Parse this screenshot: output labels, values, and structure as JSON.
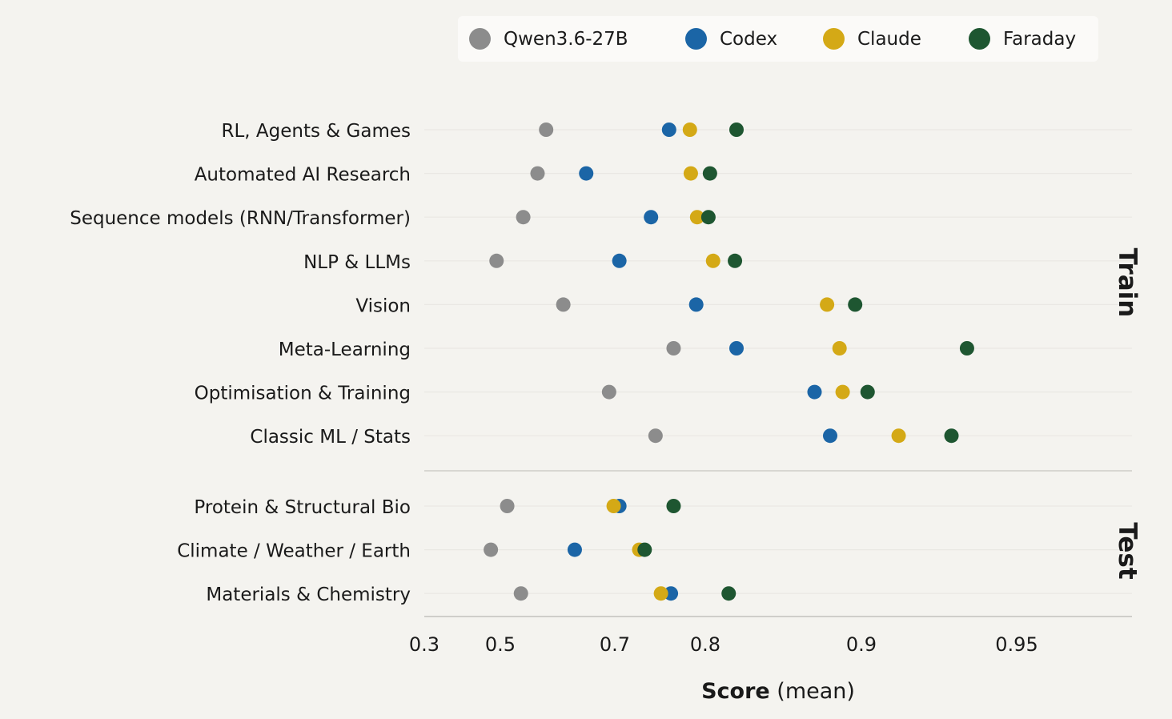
{
  "chart_data": {
    "type": "scatter",
    "xlabel": "Score",
    "xlabel_suffix": " (mean)",
    "x_ticks": [
      "0.3",
      "0.5",
      "0.7",
      "0.8",
      "0.9",
      "0.95"
    ],
    "grid": true,
    "legend_position": "top-right",
    "groups": [
      {
        "name": "Train",
        "categories": [
          "RL, Agents & Games",
          "Automated AI Research",
          "Sequence models (RNN/Transformer)",
          "NLP & LLMs",
          "Vision",
          "Meta-Learning",
          "Optimisation & Training",
          "Classic ML / Stats"
        ]
      },
      {
        "name": "Test",
        "categories": [
          "Protein & Structural Bio",
          "Climate / Weather / Earth",
          "Materials & Chemistry"
        ]
      }
    ],
    "series": [
      {
        "name": "Qwen3.6-27B",
        "color": "#8c8c8c",
        "values": [
          0.58,
          0.565,
          0.54,
          0.49,
          0.61,
          0.765,
          0.69,
          0.745,
          0.512,
          0.475,
          0.536
        ]
      },
      {
        "name": "Codex",
        "color": "#1b65a6",
        "values": [
          0.76,
          0.65,
          0.74,
          0.705,
          0.79,
          0.82,
          0.87,
          0.88,
          0.705,
          0.63,
          0.762
        ]
      },
      {
        "name": "Claude",
        "color": "#d4a916",
        "values": [
          0.783,
          0.784,
          0.791,
          0.805,
          0.878,
          0.886,
          0.888,
          0.912,
          0.698,
          0.727,
          0.751
        ]
      },
      {
        "name": "Faraday",
        "color": "#1e5631",
        "values": [
          0.82,
          0.803,
          0.802,
          0.819,
          0.896,
          0.934,
          0.902,
          0.929,
          0.765,
          0.733,
          0.815
        ]
      }
    ]
  }
}
